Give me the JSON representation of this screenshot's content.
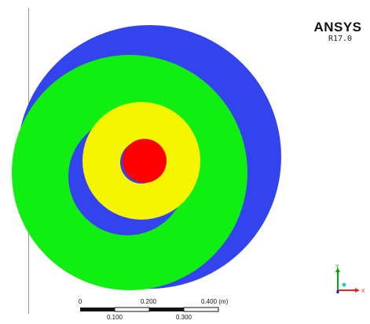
{
  "viewer": {
    "logo_title": "ANSYS",
    "logo_version": "R17.0"
  },
  "model": {
    "regions": [
      {
        "name": "outer-body",
        "color": "#3344ee"
      },
      {
        "name": "green-ring",
        "color": "#11ee11"
      },
      {
        "name": "inner-cavity",
        "color": "#3344ee"
      },
      {
        "name": "yellow-ring",
        "color": "#f5f500"
      },
      {
        "name": "core",
        "color": "#ff0000"
      }
    ]
  },
  "triad": {
    "y_label": "Y",
    "x_label": "X",
    "y_color": "#00aa00",
    "x_color": "#ee2222",
    "z_color": "#2222cc",
    "center_color": "#22cccc"
  },
  "scale_bar": {
    "top_labels": [
      "0",
      "0.200",
      "0.400 (m)"
    ],
    "bottom_labels": [
      "0.100",
      "0.300"
    ]
  }
}
